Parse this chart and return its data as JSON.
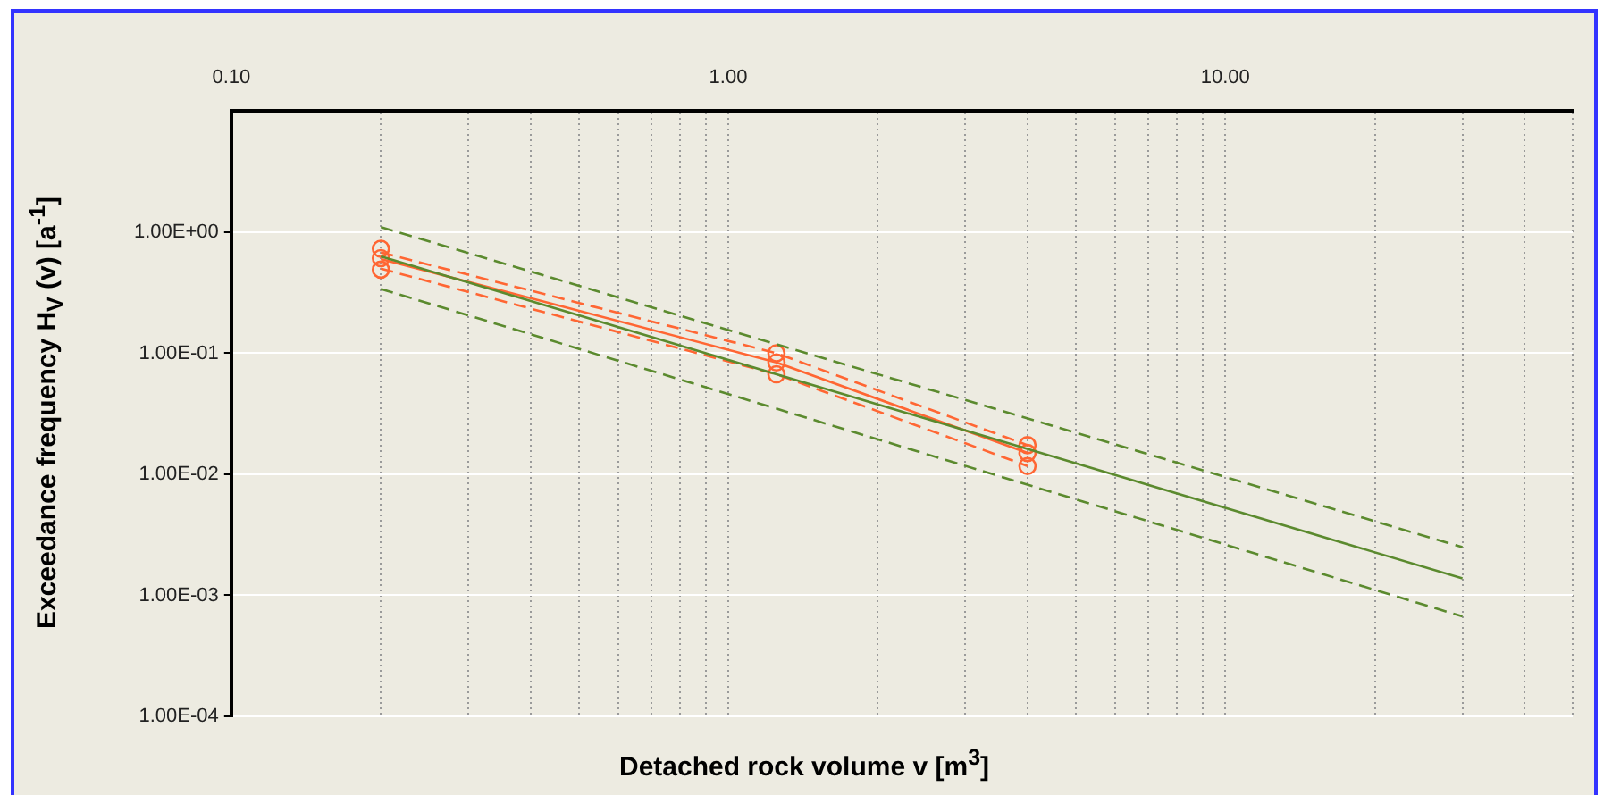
{
  "chart_data": {
    "type": "line",
    "xlabel": "Detached rock volume v [m$^{3}$]",
    "ylabel": "Exceedance frequency  H$_{V}$ (v) [a$^{-1}$]",
    "log": "xy",
    "xlim": [
      0.1,
      50
    ],
    "ylim": [
      0.0001,
      10
    ],
    "xticks": [
      {
        "value": 0.1,
        "label": "0.10"
      },
      {
        "value": 0.2,
        "label": null
      },
      {
        "value": 0.3,
        "label": null
      },
      {
        "value": 0.4,
        "label": null
      },
      {
        "value": 0.5,
        "label": null
      },
      {
        "value": 0.6,
        "label": null
      },
      {
        "value": 0.7,
        "label": null
      },
      {
        "value": 0.8,
        "label": null
      },
      {
        "value": 0.9,
        "label": null
      },
      {
        "value": 1,
        "label": "1.00"
      },
      {
        "value": 2,
        "label": null
      },
      {
        "value": 3,
        "label": null
      },
      {
        "value": 4,
        "label": null
      },
      {
        "value": 5,
        "label": null
      },
      {
        "value": 6,
        "label": null
      },
      {
        "value": 7,
        "label": null
      },
      {
        "value": 8,
        "label": null
      },
      {
        "value": 9,
        "label": null
      },
      {
        "value": 10,
        "label": "10.00"
      },
      {
        "value": 20,
        "label": null
      },
      {
        "value": 30,
        "label": null
      },
      {
        "value": 40,
        "label": null
      },
      {
        "value": 50,
        "label": null
      }
    ],
    "yticks": [
      {
        "value": 0.0001,
        "label": "1.00E-04"
      },
      {
        "value": 0.001,
        "label": "1.00E-03"
      },
      {
        "value": 0.01,
        "label": "1.00E-02"
      },
      {
        "value": 0.1,
        "label": "1.00E-01"
      },
      {
        "value": 1,
        "label": "1.00E+00"
      }
    ],
    "grid": true,
    "series": [
      {
        "type": "line",
        "color": "#5b8a2e",
        "line_style": "solid",
        "marker": "none",
        "x": [
          0.2,
          30
        ],
        "values": [
          0.63,
          0.00138
        ]
      },
      {
        "type": "line",
        "color": "#5b8a2e",
        "line_style": "dashed",
        "marker": "none",
        "x": [
          0.2,
          30
        ],
        "values": [
          1.1,
          0.0025
        ]
      },
      {
        "type": "line",
        "color": "#5b8a2e",
        "line_style": "dashed",
        "marker": "none",
        "x": [
          0.2,
          30
        ],
        "values": [
          0.34,
          0.00067
        ]
      },
      {
        "type": "line",
        "color": "#ff6633",
        "line_style": "solid",
        "marker": "none",
        "x": [
          0.2,
          1.25,
          4
        ],
        "values": [
          0.6,
          0.084,
          0.015
        ]
      },
      {
        "type": "line",
        "color": "#ff6633",
        "line_style": "dashed",
        "marker": "none",
        "x": [
          0.2,
          1.25,
          4
        ],
        "values": [
          0.68,
          0.1,
          0.0174
        ]
      },
      {
        "type": "line",
        "color": "#ff6633",
        "line_style": "dashed",
        "marker": "none",
        "x": [
          0.2,
          1.25,
          4
        ],
        "values": [
          0.5,
          0.067,
          0.0117
        ]
      },
      {
        "type": "scatter",
        "color": "#ff6633",
        "marker": "circle",
        "x": [
          0.2,
          0.2,
          0.2,
          1.25,
          1.25,
          1.25,
          4,
          4,
          4
        ],
        "values": [
          0.73,
          0.61,
          0.49,
          0.1,
          0.084,
          0.067,
          0.0174,
          0.015,
          0.0117
        ]
      }
    ]
  }
}
